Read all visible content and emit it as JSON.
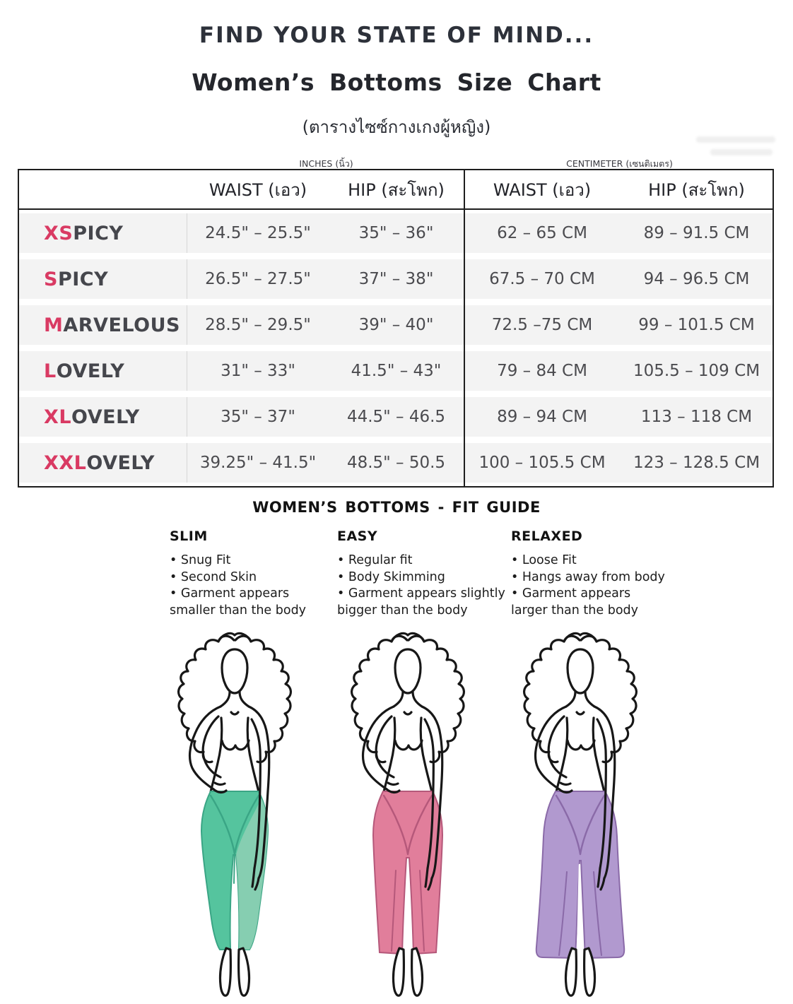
{
  "page": {
    "title": "FIND YOUR STATE OF MIND...",
    "subtitle": "Women’s Bottoms  Size Chart",
    "subtitle_thai": "(ตารางไซซ์กางเกงผู้หญิง)"
  },
  "colors": {
    "accent": "#d93a63",
    "heading_text": "#2d313a",
    "value_text": "#4b4b4f",
    "row_background": "#f3f3f3",
    "table_border": "#1e1e1e",
    "slim_pants": "#55c49e",
    "slim_pants_light": "#8fd0b4",
    "slim_seam": "#3aa585",
    "easy_pants": "#e17e9b",
    "easy_seam": "#b5587a",
    "relaxed_pants": "#b199cf",
    "relaxed_seam": "#8a6aa8"
  },
  "size_table": {
    "unit_headers": {
      "inches": "INCHES (นิ้ว)",
      "centimeter": "CENTIMETER (เซนติเมตร)"
    },
    "column_headers": {
      "waist_in": "WAIST (เอว)",
      "hip_in": "HIP (สะโพก)",
      "waist_cm": "WAIST (เอว)",
      "hip_cm": "HIP (สะโพก)"
    },
    "rows": [
      {
        "size_prefix": "XS",
        "size_suffix": "PICY",
        "waist_in": "24.5\" – 25.5\"",
        "hip_in": "35\" – 36\"",
        "waist_cm": "62 – 65 CM",
        "hip_cm": "89 – 91.5 CM"
      },
      {
        "size_prefix": "S",
        "size_suffix": "PICY",
        "waist_in": "26.5\" – 27.5\"",
        "hip_in": "37\" – 38\"",
        "waist_cm": "67.5 – 70 CM",
        "hip_cm": "94 – 96.5 CM"
      },
      {
        "size_prefix": "M",
        "size_suffix": "ARVELOUS",
        "waist_in": "28.5\" – 29.5\"",
        "hip_in": "39\" – 40\"",
        "waist_cm": "72.5 –75 CM",
        "hip_cm": "99 – 101.5 CM"
      },
      {
        "size_prefix": "L",
        "size_suffix": "OVELY",
        "waist_in": "31\" – 33\"",
        "hip_in": "41.5\" – 43\"",
        "waist_cm": "79 – 84 CM",
        "hip_cm": "105.5 – 109 CM"
      },
      {
        "size_prefix": "XL",
        "size_suffix": "OVELY",
        "waist_in": "35\" – 37\"",
        "hip_in": "44.5\" – 46.5",
        "waist_cm": "89 – 94 CM",
        "hip_cm": "113 – 118 CM"
      },
      {
        "size_prefix": "XXL",
        "size_suffix": "OVELY",
        "waist_in": "39.25\" – 41.5\"",
        "hip_in": "48.5\" – 50.5",
        "waist_cm": "100 – 105.5 CM",
        "hip_cm": "123 – 128.5 CM"
      }
    ]
  },
  "fit_guide": {
    "title": "WOMEN’S BOTTOMS -  FIT GUIDE",
    "columns": [
      {
        "fit": "slim",
        "name": "SLIM",
        "lines": [
          "• Snug Fit",
          "• Second Skin",
          "• Garment appears",
          "smaller than the body"
        ]
      },
      {
        "fit": "easy",
        "name": "EASY",
        "lines": [
          "• Regular fit",
          "• Body Skimming",
          "• Garment appears slightly",
          "bigger than the body"
        ]
      },
      {
        "fit": "relaxed",
        "name": "RELAXED",
        "lines": [
          "• Loose Fit",
          "• Hangs away from body",
          "• Garment appears",
          "larger than the body"
        ]
      }
    ]
  },
  "figures": [
    {
      "fit": "slim",
      "pants_color": "#55c49e",
      "pants_shade": "#8fd0b4",
      "seam_color": "#3aa585"
    },
    {
      "fit": "easy",
      "pants_color": "#e17e9b",
      "pants_shade": "#e996ad",
      "seam_color": "#b5587a"
    },
    {
      "fit": "relaxed",
      "pants_color": "#b199cf",
      "pants_shade": "#bda8d8",
      "seam_color": "#8a6aa8"
    }
  ]
}
